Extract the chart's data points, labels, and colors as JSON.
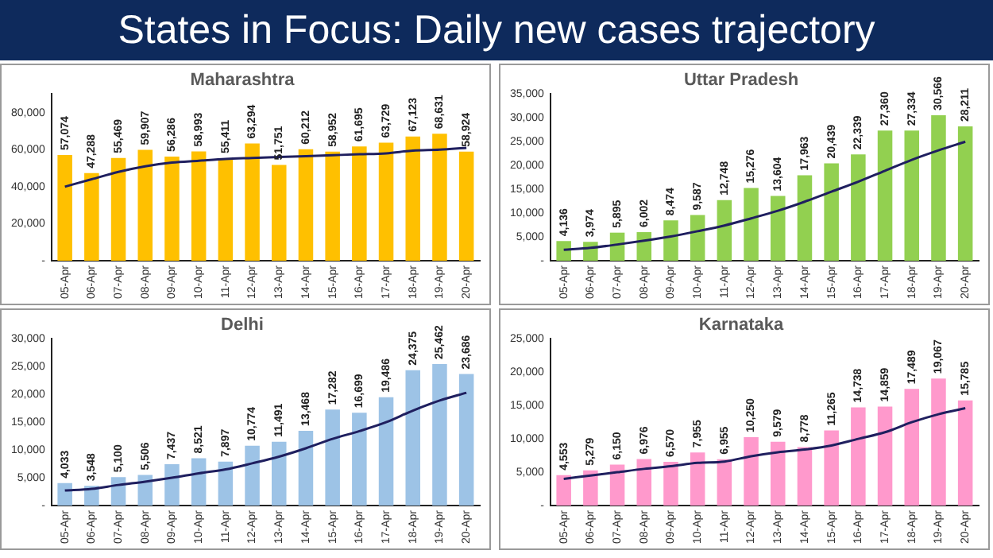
{
  "chart_data": [
    {
      "type": "other",
      "title": "States in Focus: Daily new cases trajectory"
    },
    {
      "type": "bar",
      "title": "Maharashtra",
      "categories": [
        "05-Apr",
        "06-Apr",
        "07-Apr",
        "08-Apr",
        "09-Apr",
        "10-Apr",
        "11-Apr",
        "12-Apr",
        "13-Apr",
        "14-Apr",
        "15-Apr",
        "16-Apr",
        "17-Apr",
        "18-Apr",
        "19-Apr",
        "20-Apr"
      ],
      "series": [
        {
          "color": "#ffc000",
          "values": [
            57074,
            47288,
            55469,
            59907,
            56286,
            58993,
            55411,
            63294,
            51751,
            60212,
            58952,
            61695,
            63729,
            67123,
            68631,
            58924
          ],
          "value_labels": [
            "57,074",
            "47,288",
            "55,469",
            "59,907",
            "56,286",
            "58,993",
            "55,411",
            "63,294",
            "51,751",
            "60,212",
            "58,952",
            "61,695",
            "63,729",
            "67,123",
            "68,631",
            "58,924"
          ]
        },
        {
          "type": "line",
          "color": "#1f1f5f",
          "values": [
            40000,
            44000,
            48000,
            51000,
            53000,
            54000,
            55000,
            55500,
            56000,
            56500,
            57000,
            57500,
            58000,
            59500,
            60000,
            61000
          ]
        }
      ],
      "ylim": [
        0,
        90000
      ],
      "yticks": [
        {
          "value": 0,
          "label": "-"
        },
        {
          "value": 20000,
          "label": "20,000"
        },
        {
          "value": 40000,
          "label": "40,000"
        },
        {
          "value": 60000,
          "label": "60,000"
        },
        {
          "value": 80000,
          "label": "80,000"
        }
      ],
      "grid": false,
      "legend": false
    },
    {
      "type": "bar",
      "title": "Uttar Pradesh",
      "categories": [
        "05-Apr",
        "06-Apr",
        "07-Apr",
        "08-Apr",
        "09-Apr",
        "10-Apr",
        "11-Apr",
        "12-Apr",
        "13-Apr",
        "14-Apr",
        "15-Apr",
        "16-Apr",
        "17-Apr",
        "18-Apr",
        "19-Apr",
        "20-Apr"
      ],
      "series": [
        {
          "color": "#92d050",
          "values": [
            4136,
            3974,
            5895,
            6002,
            8474,
            9587,
            12748,
            15276,
            13604,
            17963,
            20439,
            22339,
            27360,
            27334,
            30566,
            28211
          ],
          "value_labels": [
            "4,136",
            "3,974",
            "5,895",
            "6,002",
            "8,474",
            "9,587",
            "12,748",
            "15,276",
            "13,604",
            "17,963",
            "20,439",
            "22,339",
            "27,360",
            "27,334",
            "30,566",
            "28,211"
          ]
        },
        {
          "type": "line",
          "color": "#1f1f5f",
          "values": [
            2300,
            2700,
            3400,
            4200,
            5100,
            6200,
            7400,
            8900,
            10500,
            12400,
            14500,
            16600,
            18900,
            21200,
            23200,
            25000
          ]
        }
      ],
      "ylim": [
        0,
        35000
      ],
      "yticks": [
        {
          "value": 0,
          "label": "-"
        },
        {
          "value": 5000,
          "label": "5,000"
        },
        {
          "value": 10000,
          "label": "10,000"
        },
        {
          "value": 15000,
          "label": "15,000"
        },
        {
          "value": 20000,
          "label": "20,000"
        },
        {
          "value": 25000,
          "label": "25,000"
        },
        {
          "value": 30000,
          "label": "30,000"
        },
        {
          "value": 35000,
          "label": "35,000"
        }
      ],
      "grid": false,
      "legend": false
    },
    {
      "type": "bar",
      "title": "Delhi",
      "categories": [
        "05-Apr",
        "06-Apr",
        "07-Apr",
        "08-Apr",
        "09-Apr",
        "10-Apr",
        "11-Apr",
        "12-Apr",
        "13-Apr",
        "14-Apr",
        "15-Apr",
        "16-Apr",
        "17-Apr",
        "18-Apr",
        "19-Apr",
        "20-Apr"
      ],
      "series": [
        {
          "color": "#9dc3e6",
          "values": [
            4033,
            3548,
            5100,
            5506,
            7437,
            8521,
            7897,
            10774,
            11491,
            13468,
            17282,
            16699,
            19486,
            24375,
            25462,
            23686
          ],
          "value_labels": [
            "4,033",
            "3,548",
            "5,100",
            "5,506",
            "7,437",
            "8,521",
            "7,897",
            "10,774",
            "11,491",
            "13,468",
            "17,282",
            "16,699",
            "19,486",
            "24,375",
            "25,462",
            "23,686"
          ]
        },
        {
          "type": "line",
          "color": "#1f1f5f",
          "values": [
            2700,
            3000,
            3700,
            4300,
            5000,
            5800,
            6500,
            7600,
            8800,
            10300,
            12000,
            13400,
            15000,
            17100,
            18900,
            20300
          ]
        }
      ],
      "ylim": [
        0,
        30000
      ],
      "yticks": [
        {
          "value": 0,
          "label": "-"
        },
        {
          "value": 5000,
          "label": "5,000"
        },
        {
          "value": 10000,
          "label": "10,000"
        },
        {
          "value": 15000,
          "label": "15,000"
        },
        {
          "value": 20000,
          "label": "20,000"
        },
        {
          "value": 25000,
          "label": "25,000"
        },
        {
          "value": 30000,
          "label": "30,000"
        }
      ],
      "grid": false,
      "legend": false
    },
    {
      "type": "bar",
      "title": "Karnataka",
      "categories": [
        "05-Apr",
        "06-Apr",
        "07-Apr",
        "08-Apr",
        "09-Apr",
        "10-Apr",
        "11-Apr",
        "12-Apr",
        "13-Apr",
        "14-Apr",
        "15-Apr",
        "16-Apr",
        "17-Apr",
        "18-Apr",
        "19-Apr",
        "20-Apr"
      ],
      "series": [
        {
          "color": "#ff99cc",
          "values": [
            4553,
            5279,
            6150,
            6976,
            6570,
            7955,
            6955,
            10250,
            9579,
            8778,
            11265,
            14738,
            14859,
            17489,
            19067,
            15785
          ],
          "value_labels": [
            "4,553",
            "5,279",
            "6,150",
            "6,976",
            "6,570",
            "7,955",
            "6,955",
            "10,250",
            "9,579",
            "8,778",
            "11,265",
            "14,738",
            "14,859",
            "17,489",
            "19,067",
            "15,785"
          ]
        },
        {
          "type": "line",
          "color": "#1f1f5f",
          "values": [
            4000,
            4500,
            5000,
            5500,
            5900,
            6400,
            6600,
            7400,
            8000,
            8400,
            9000,
            10000,
            11000,
            12500,
            13700,
            14600
          ]
        }
      ],
      "ylim": [
        0,
        25000
      ],
      "yticks": [
        {
          "value": 0,
          "label": "-"
        },
        {
          "value": 5000,
          "label": "5,000"
        },
        {
          "value": 10000,
          "label": "10,000"
        },
        {
          "value": 15000,
          "label": "15,000"
        },
        {
          "value": 20000,
          "label": "20,000"
        },
        {
          "value": 25000,
          "label": "25,000"
        }
      ],
      "grid": false,
      "legend": false
    }
  ]
}
